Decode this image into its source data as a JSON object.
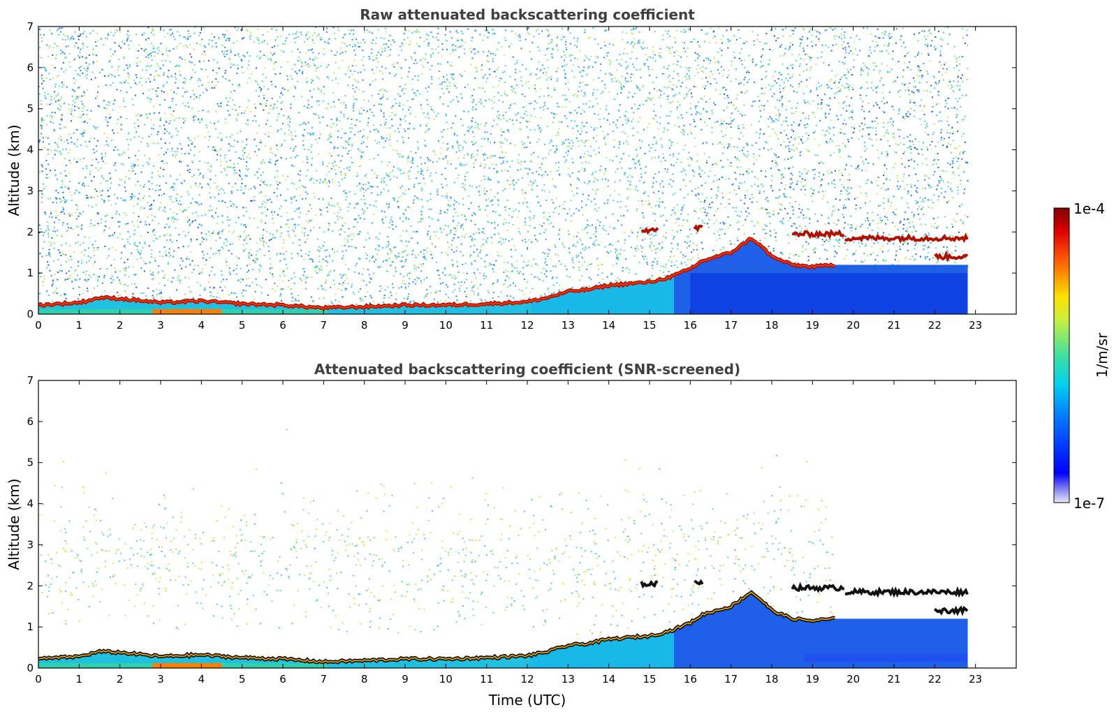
{
  "chart_data": [
    {
      "type": "heatmap",
      "title": "Raw attenuated backscattering coefficient",
      "xlabel": "",
      "ylabel": "Altitude (km)",
      "xlim": [
        0,
        24
      ],
      "ylim": [
        0,
        7
      ],
      "x_ticks": [
        "0",
        "1",
        "2",
        "3",
        "4",
        "5",
        "6",
        "7",
        "8",
        "9",
        "10",
        "11",
        "12",
        "13",
        "14",
        "15",
        "16",
        "17",
        "18",
        "19",
        "20",
        "21",
        "22",
        "23"
      ],
      "y_ticks": [
        "0",
        "1",
        "2",
        "3",
        "4",
        "5",
        "6",
        "7"
      ],
      "data_end_time": 22.8,
      "boundary_layer_top_km": [
        [
          0,
          0.22
        ],
        [
          1,
          0.28
        ],
        [
          1.5,
          0.4
        ],
        [
          2,
          0.38
        ],
        [
          3,
          0.28
        ],
        [
          4,
          0.32
        ],
        [
          5,
          0.25
        ],
        [
          6,
          0.22
        ],
        [
          7,
          0.15
        ],
        [
          8,
          0.18
        ],
        [
          9,
          0.22
        ],
        [
          10,
          0.22
        ],
        [
          11,
          0.25
        ],
        [
          12,
          0.3
        ],
        [
          12.5,
          0.4
        ],
        [
          13,
          0.55
        ],
        [
          13.5,
          0.6
        ],
        [
          14,
          0.7
        ],
        [
          14.6,
          0.75
        ],
        [
          15,
          0.78
        ],
        [
          15.5,
          0.9
        ],
        [
          16,
          1.1
        ],
        [
          16.3,
          1.3
        ],
        [
          17,
          1.5
        ],
        [
          17.5,
          1.85
        ],
        [
          17.8,
          1.6
        ],
        [
          18,
          1.4
        ],
        [
          18.5,
          1.2
        ],
        [
          19,
          1.15
        ],
        [
          19.5,
          1.2
        ]
      ],
      "elevated_layers_km": [
        {
          "x0": 14.8,
          "x1": 15.2,
          "y": 2.05
        },
        {
          "x0": 16.1,
          "x1": 16.3,
          "y": 2.1
        },
        {
          "x0": 18.5,
          "x1": 19.8,
          "y": 1.95
        },
        {
          "x0": 19.8,
          "x1": 22.8,
          "y": 1.85
        },
        {
          "x0": 22.0,
          "x1": 22.8,
          "y": 1.4
        }
      ],
      "colorbar": {
        "label": "1/m/sr",
        "min_label": "1e-7",
        "max_label": "1e-4",
        "scale": "log"
      }
    },
    {
      "type": "heatmap",
      "title": "Attenuated backscattering coefficient (SNR-screened)",
      "xlabel": "Time (UTC)",
      "ylabel": "Altitude (km)",
      "xlim": [
        0,
        24
      ],
      "ylim": [
        0,
        7
      ],
      "x_ticks": [
        "0",
        "1",
        "2",
        "3",
        "4",
        "5",
        "6",
        "7",
        "8",
        "9",
        "10",
        "11",
        "12",
        "13",
        "14",
        "15",
        "16",
        "17",
        "18",
        "19",
        "20",
        "21",
        "22",
        "23"
      ],
      "y_ticks": [
        "0",
        "1",
        "2",
        "3",
        "4",
        "5",
        "6",
        "7"
      ],
      "data_end_time": 22.8
    }
  ]
}
